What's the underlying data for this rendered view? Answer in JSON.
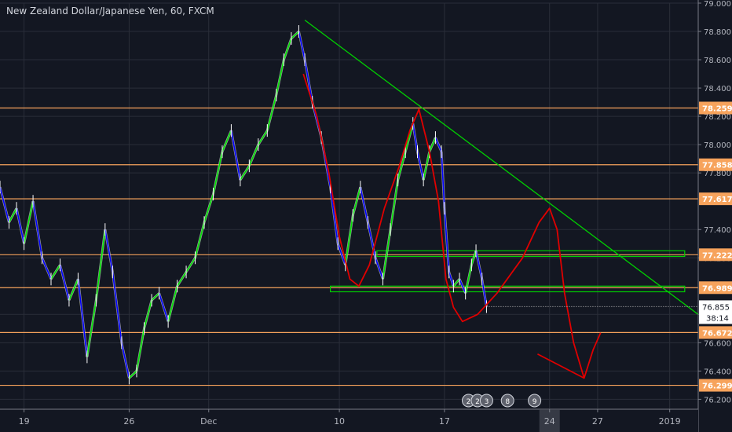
{
  "header": {
    "title": "New Zealand Dollar/Japanese Yen, 60, FXCM"
  },
  "colors": {
    "background": "#131722",
    "grid": "#2a2e39",
    "axis_text": "#b2b5be",
    "candle": "#ffffff",
    "indicator_up": "#00e600",
    "indicator_down": "#0000ff",
    "horizontal_level": "#f7a35c",
    "trendline": "#00d000",
    "projection": "#e00000",
    "zone": "#00d000",
    "last_price_line": "#c8c8c8",
    "axis_highlight": "#363a45"
  },
  "chart_data": {
    "type": "line",
    "title": "New Zealand Dollar/Japanese Yen, 60, FXCM",
    "xlabel": "",
    "ylabel": "",
    "ylim": [
      76.13,
      79.0
    ],
    "y_ticks": [
      79.0,
      78.8,
      78.6,
      78.4,
      78.2,
      78.0,
      77.8,
      77.4,
      77.2,
      76.8,
      76.6,
      76.4,
      76.2
    ],
    "x_ticks": [
      {
        "label": "19",
        "t": 0
      },
      {
        "label": "26",
        "t": 7
      },
      {
        "label": "Dec",
        "t": 12.3
      },
      {
        "label": "10",
        "t": 21
      },
      {
        "label": "17",
        "t": 28
      },
      {
        "label": "24",
        "t": 35
      },
      {
        "label": "27",
        "t": 38.2
      },
      {
        "label": "2019",
        "t": 43
      }
    ],
    "x_range_days": [
      -1.6,
      44.9
    ],
    "grid": true,
    "horizontal_levels": [
      {
        "label": "78.259",
        "value": 78.259
      },
      {
        "label": "77.858",
        "value": 77.858
      },
      {
        "label": "77.617",
        "value": 77.617
      },
      {
        "label": "77.222",
        "value": 77.222
      },
      {
        "label": "76.989",
        "value": 76.989
      },
      {
        "label": "76.672",
        "value": 76.672
      },
      {
        "label": "76.299",
        "value": 76.299
      }
    ],
    "last_price": {
      "value": 76.855,
      "label": "76.855",
      "countdown": "38:14"
    },
    "highlight_x_label": "24",
    "price_series": [
      {
        "t": -1.6,
        "v": 77.7
      },
      {
        "t": -1.0,
        "v": 77.45
      },
      {
        "t": -0.5,
        "v": 77.55
      },
      {
        "t": 0.0,
        "v": 77.3
      },
      {
        "t": 0.6,
        "v": 77.6
      },
      {
        "t": 1.2,
        "v": 77.2
      },
      {
        "t": 1.8,
        "v": 77.05
      },
      {
        "t": 2.4,
        "v": 77.15
      },
      {
        "t": 3.0,
        "v": 76.9
      },
      {
        "t": 3.6,
        "v": 77.05
      },
      {
        "t": 4.2,
        "v": 76.5
      },
      {
        "t": 4.8,
        "v": 76.9
      },
      {
        "t": 5.4,
        "v": 77.4
      },
      {
        "t": 5.9,
        "v": 77.1
      },
      {
        "t": 6.5,
        "v": 76.6
      },
      {
        "t": 7.0,
        "v": 76.35
      },
      {
        "t": 7.5,
        "v": 76.4
      },
      {
        "t": 8.0,
        "v": 76.7
      },
      {
        "t": 8.5,
        "v": 76.9
      },
      {
        "t": 9.0,
        "v": 76.95
      },
      {
        "t": 9.6,
        "v": 76.75
      },
      {
        "t": 10.2,
        "v": 77.0
      },
      {
        "t": 10.8,
        "v": 77.1
      },
      {
        "t": 11.4,
        "v": 77.2
      },
      {
        "t": 12.0,
        "v": 77.45
      },
      {
        "t": 12.6,
        "v": 77.65
      },
      {
        "t": 13.2,
        "v": 77.95
      },
      {
        "t": 13.8,
        "v": 78.1
      },
      {
        "t": 14.4,
        "v": 77.75
      },
      {
        "t": 15.0,
        "v": 77.85
      },
      {
        "t": 15.6,
        "v": 78.0
      },
      {
        "t": 16.2,
        "v": 78.1
      },
      {
        "t": 16.8,
        "v": 78.35
      },
      {
        "t": 17.3,
        "v": 78.6
      },
      {
        "t": 17.8,
        "v": 78.75
      },
      {
        "t": 18.3,
        "v": 78.8
      },
      {
        "t": 18.7,
        "v": 78.6
      },
      {
        "t": 19.2,
        "v": 78.3
      },
      {
        "t": 19.8,
        "v": 78.05
      },
      {
        "t": 20.4,
        "v": 77.7
      },
      {
        "t": 20.9,
        "v": 77.3
      },
      {
        "t": 21.4,
        "v": 77.15
      },
      {
        "t": 21.9,
        "v": 77.5
      },
      {
        "t": 22.4,
        "v": 77.7
      },
      {
        "t": 22.9,
        "v": 77.45
      },
      {
        "t": 23.4,
        "v": 77.2
      },
      {
        "t": 23.9,
        "v": 77.05
      },
      {
        "t": 24.4,
        "v": 77.4
      },
      {
        "t": 24.9,
        "v": 77.75
      },
      {
        "t": 25.4,
        "v": 77.95
      },
      {
        "t": 25.9,
        "v": 78.15
      },
      {
        "t": 26.2,
        "v": 77.95
      },
      {
        "t": 26.6,
        "v": 77.75
      },
      {
        "t": 27.0,
        "v": 77.95
      },
      {
        "t": 27.4,
        "v": 78.05
      },
      {
        "t": 27.8,
        "v": 77.95
      },
      {
        "t": 28.0,
        "v": 77.55
      },
      {
        "t": 28.3,
        "v": 77.1
      },
      {
        "t": 28.6,
        "v": 77.0
      },
      {
        "t": 29.0,
        "v": 77.05
      },
      {
        "t": 29.4,
        "v": 76.95
      },
      {
        "t": 29.8,
        "v": 77.15
      },
      {
        "t": 30.1,
        "v": 77.25
      },
      {
        "t": 30.5,
        "v": 77.05
      },
      {
        "t": 30.8,
        "v": 76.855
      }
    ],
    "trendline": [
      {
        "t": 18.7,
        "v": 78.88
      },
      {
        "t": 44.9,
        "v": 76.8
      }
    ],
    "projection_path": [
      {
        "t": 18.6,
        "v": 78.5
      },
      {
        "t": 19.5,
        "v": 78.2
      },
      {
        "t": 20.3,
        "v": 77.8
      },
      {
        "t": 21.0,
        "v": 77.35
      },
      {
        "t": 21.7,
        "v": 77.05
      },
      {
        "t": 22.3,
        "v": 77.0
      },
      {
        "t": 23.0,
        "v": 77.15
      },
      {
        "t": 24.0,
        "v": 77.55
      },
      {
        "t": 25.0,
        "v": 77.85
      },
      {
        "t": 25.7,
        "v": 78.1
      },
      {
        "t": 26.3,
        "v": 78.25
      },
      {
        "t": 27.0,
        "v": 77.95
      },
      {
        "t": 27.6,
        "v": 77.6
      },
      {
        "t": 28.1,
        "v": 77.05
      },
      {
        "t": 28.6,
        "v": 76.85
      },
      {
        "t": 29.2,
        "v": 76.75
      },
      {
        "t": 30.2,
        "v": 76.8
      },
      {
        "t": 31.5,
        "v": 76.95
      },
      {
        "t": 33.2,
        "v": 77.2
      },
      {
        "t": 34.3,
        "v": 77.45
      },
      {
        "t": 35.0,
        "v": 77.55
      },
      {
        "t": 35.5,
        "v": 77.4
      },
      {
        "t": 36.0,
        "v": 76.95
      },
      {
        "t": 36.6,
        "v": 76.6
      },
      {
        "t": 37.3,
        "v": 76.35
      },
      {
        "t": 37.9,
        "v": 76.55
      },
      {
        "t": 38.4,
        "v": 76.67
      }
    ],
    "projection_tail": [
      {
        "t": 34.2,
        "v": 76.52
      },
      {
        "t": 37.3,
        "v": 76.35
      }
    ],
    "zones": [
      {
        "t1": 23.5,
        "t2": 44.0,
        "top": 77.25,
        "bottom": 77.21
      },
      {
        "t1": 20.4,
        "t2": 44.0,
        "top": 77.0,
        "bottom": 76.96
      }
    ],
    "event_badges": [
      {
        "label": "2",
        "t": 29.6
      },
      {
        "label": "2",
        "t": 30.2
      },
      {
        "label": "3",
        "t": 30.8
      },
      {
        "label": "8",
        "t": 32.2
      },
      {
        "label": "9",
        "t": 34.0
      }
    ]
  }
}
